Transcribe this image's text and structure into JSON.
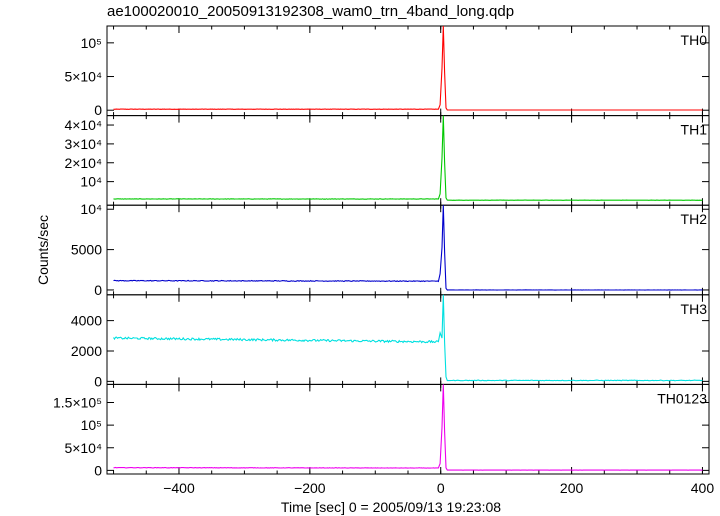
{
  "title": "ae100020010_20050913192308_wam0_trn_4band_long.qdp",
  "chart_data": {
    "type": "line",
    "xlabel": "Time [sec] 0 = 2005/09/13 19:23:08",
    "ylabel": "Counts/sec",
    "xlim": [
      -510,
      410
    ],
    "xticks": [
      {
        "value": -400,
        "label": "−400"
      },
      {
        "value": -200,
        "label": "−200"
      },
      {
        "value": 0,
        "label": "0"
      },
      {
        "value": 200,
        "label": "200"
      },
      {
        "value": 400,
        "label": "400"
      }
    ],
    "grid": false,
    "panels": [
      {
        "name": "TH0",
        "color": "#ff0000",
        "ylim": [
          -8000,
          125000
        ],
        "yticks": [
          {
            "value": 0,
            "label": "0"
          },
          {
            "value": 50000,
            "label": "5×10⁴"
          },
          {
            "value": 100000,
            "label": "10⁵"
          }
        ],
        "series": {
          "baseline": 1500,
          "noise": 200,
          "drift": 0,
          "pre_peak": 8000,
          "peak": 125000,
          "post": 300
        }
      },
      {
        "name": "TH1",
        "color": "#00c800",
        "ylim": [
          -2500,
          45000
        ],
        "yticks": [
          {
            "value": 10000,
            "label": "10⁴"
          },
          {
            "value": 20000,
            "label": "2×10⁴"
          },
          {
            "value": 30000,
            "label": "3×10⁴"
          },
          {
            "value": 40000,
            "label": "4×10⁴"
          }
        ],
        "series": {
          "baseline": 800,
          "noise": 120,
          "drift": 0,
          "pre_peak": 3500,
          "peak": 45000,
          "post": 150
        }
      },
      {
        "name": "TH2",
        "color": "#0000cc",
        "ylim": [
          -600,
          10500
        ],
        "yticks": [
          {
            "value": 0,
            "label": "0"
          },
          {
            "value": 5000,
            "label": "5000"
          },
          {
            "value": 10000,
            "label": "10⁴"
          }
        ],
        "series": {
          "baseline": 1150,
          "noise": 45,
          "drift": -60,
          "pre_peak": 2000,
          "peak": 10500,
          "post": 0
        }
      },
      {
        "name": "TH3",
        "color": "#00e0e0",
        "ylim": [
          -200,
          5700
        ],
        "yticks": [
          {
            "value": 0,
            "label": "0"
          },
          {
            "value": 2000,
            "label": "2000"
          },
          {
            "value": 4000,
            "label": "4000"
          }
        ],
        "series": {
          "baseline": 2850,
          "noise": 70,
          "drift": -250,
          "pre_peak": 3200,
          "peak": 5700,
          "post": 60
        }
      },
      {
        "name": "TH0123",
        "color": "#ee00ee",
        "ylim": [
          -8000,
          190000
        ],
        "yticks": [
          {
            "value": 0,
            "label": "0"
          },
          {
            "value": 50000,
            "label": "5×10⁴"
          },
          {
            "value": 100000,
            "label": "10⁵"
          },
          {
            "value": 150000,
            "label": "1.5×10⁵"
          }
        ],
        "series": {
          "baseline": 6000,
          "noise": 400,
          "drift": -800,
          "pre_peak": 15000,
          "peak": 190000,
          "post": 600
        }
      }
    ]
  }
}
